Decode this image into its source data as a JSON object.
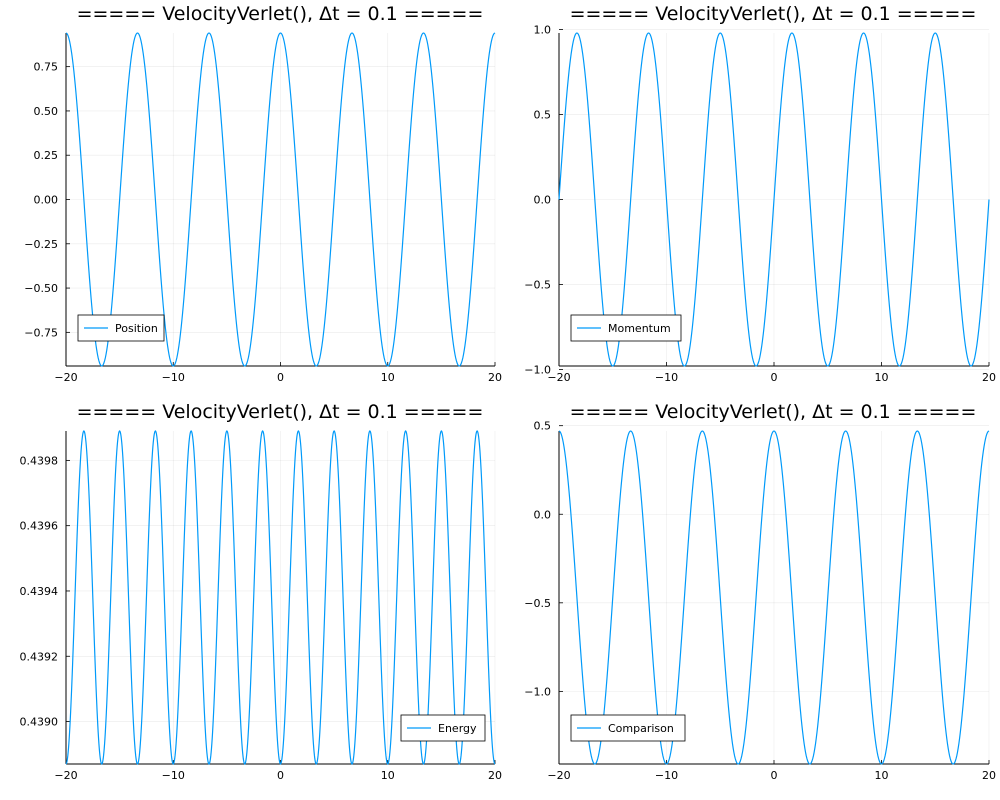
{
  "chart_data": [
    {
      "type": "line",
      "title": "===== VelocityVerlet(), Δt = 0.1 =====",
      "xlabel": "",
      "ylabel": "",
      "xlim": [
        -20,
        20
      ],
      "ylim": [
        -0.94,
        0.94
      ],
      "xticks": [
        -20,
        -10,
        0,
        10,
        20
      ],
      "xtick_labels": [
        "−20",
        "−10",
        "0",
        "10",
        "20"
      ],
      "yticks": [
        -0.75,
        -0.5,
        -0.25,
        0,
        0.25,
        0.5,
        0.75
      ],
      "ytick_labels": [
        "−0.75",
        "−0.50",
        "−0.25",
        "0.00",
        "0.25",
        "0.50",
        "0.75"
      ],
      "grid": true,
      "legend": "bottom-left",
      "series": [
        {
          "name": "Position",
          "color": "#009AFA",
          "x_range": [
            -20,
            20
          ],
          "points": 600,
          "function": "offset + amplitude * cos(omega * (x + 20) + phase)",
          "params": {
            "offset": 0,
            "amplitude": 0.94,
            "omega": 0.9424778,
            "phase": 0
          }
        }
      ]
    },
    {
      "type": "line",
      "title": "===== VelocityVerlet(), Δt = 0.1 =====",
      "xlabel": "",
      "ylabel": "",
      "xlim": [
        -20,
        20
      ],
      "ylim": [
        -0.98,
        0.98
      ],
      "xticks": [
        -20,
        -10,
        0,
        10,
        20
      ],
      "xtick_labels": [
        "−20",
        "−10",
        "0",
        "10",
        "20"
      ],
      "yticks": [
        -1.0,
        -0.5,
        0,
        0.5,
        1.0
      ],
      "ytick_labels": [
        "−1.0",
        "−0.5",
        "0.0",
        "0.5",
        "1.0"
      ],
      "grid": true,
      "legend": "bottom-left",
      "series": [
        {
          "name": "Momentum",
          "color": "#009AFA",
          "x_range": [
            -20,
            20
          ],
          "points": 600,
          "function": "offset + amplitude * cos(omega * (x + 20) + phase)",
          "params": {
            "offset": 0,
            "amplitude": 0.98,
            "omega": 0.9424778,
            "phase": -1.5707963
          }
        }
      ]
    },
    {
      "type": "line",
      "title": "===== VelocityVerlet(), Δt = 0.1 =====",
      "xlabel": "",
      "ylabel": "",
      "xlim": [
        -20,
        20
      ],
      "ylim": [
        0.43887,
        0.43989
      ],
      "xticks": [
        -20,
        -10,
        0,
        10,
        20
      ],
      "xtick_labels": [
        "−20",
        "−10",
        "0",
        "10",
        "20"
      ],
      "yticks": [
        0.439,
        0.4392,
        0.4394,
        0.4396,
        0.4398
      ],
      "ytick_labels": [
        "0.4390",
        "0.4392",
        "0.4394",
        "0.4396",
        "0.4398"
      ],
      "grid": true,
      "legend": "bottom-right",
      "series": [
        {
          "name": "Energy",
          "color": "#009AFA",
          "x_range": [
            -20,
            20
          ],
          "points": 1200,
          "function": "offset + amplitude * cos(omega * (x + 20) + phase)",
          "params": {
            "offset": 0.43938,
            "amplitude": 0.00051,
            "omega": 1.8849556,
            "phase": 3.1415927
          }
        }
      ]
    },
    {
      "type": "line",
      "title": "===== VelocityVerlet(), Δt = 0.1 =====",
      "xlabel": "",
      "ylabel": "",
      "xlim": [
        -20,
        20
      ],
      "ylim": [
        -1.41,
        0.47
      ],
      "xticks": [
        -20,
        -10,
        0,
        10,
        20
      ],
      "xtick_labels": [
        "−20",
        "−10",
        "0",
        "10",
        "20"
      ],
      "yticks": [
        -1.0,
        -0.5,
        0,
        0.5
      ],
      "ytick_labels": [
        "−1.0",
        "−0.5",
        "0.0",
        "0.5"
      ],
      "grid": true,
      "legend": "bottom-left",
      "series": [
        {
          "name": "Comparison",
          "color": "#009AFA",
          "x_range": [
            -20,
            20
          ],
          "points": 600,
          "function": "offset + amplitude * cos(omega * (x + 20) + phase)",
          "params": {
            "offset": -0.47,
            "amplitude": 0.94,
            "omega": 0.9424778,
            "phase": 0
          }
        }
      ]
    }
  ]
}
